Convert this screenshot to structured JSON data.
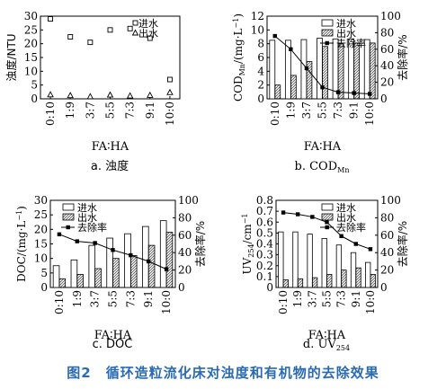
{
  "figure": {
    "caption": "图2　循环造粒流化床对浊度和有机物的去除效果"
  },
  "chart_data": [
    {
      "type": "scatter",
      "caption": "a. 浊度",
      "xlabel": "FA∶HA",
      "ylabel": "浊度/NTU",
      "categories": [
        "0:10",
        "1:9",
        "3:7",
        "5:5",
        "7:3",
        "9:1",
        "10:0"
      ],
      "ylim": [
        0,
        30
      ],
      "yticks": [
        0,
        5,
        10,
        15,
        20,
        25,
        30
      ],
      "legend_position": "top-right",
      "series": [
        {
          "name": "进水",
          "marker": "square",
          "values": [
            29,
            22.5,
            20.5,
            25,
            25.5,
            22,
            7
          ]
        },
        {
          "name": "出水",
          "marker": "triangle",
          "values": [
            1.5,
            1.2,
            0.8,
            1.4,
            1.1,
            1.3,
            2.3
          ]
        }
      ]
    },
    {
      "type": "bar",
      "caption": "b. CODMn",
      "caption_main": "b. COD",
      "caption_sub": "Mn",
      "xlabel": "FA∶HA",
      "ylabel": "COD/(mg·L)",
      "ylabel_main": "COD",
      "ylabel_sub": "Mn",
      "ylabel_unit": "/(mg·L",
      "ylabel_sup": "−1",
      "ylabel_close": ")",
      "y2label": "去除率/%",
      "categories": [
        "0:10",
        "1:9",
        "3:7",
        "5:5",
        "7:3",
        "9:1",
        "10:0"
      ],
      "ylim": [
        0,
        12
      ],
      "yticks": [
        0,
        2,
        4,
        6,
        8,
        10,
        12
      ],
      "y2lim": [
        0,
        100
      ],
      "y2ticks": [
        0,
        20,
        40,
        60,
        80,
        100
      ],
      "legend_position": "top-right",
      "series": [
        {
          "name": "进水",
          "kind": "bar",
          "pattern": "open",
          "values": [
            8.5,
            8.5,
            8.6,
            8.8,
            8.7,
            8.7,
            8.6
          ]
        },
        {
          "name": "出水",
          "kind": "bar",
          "pattern": "hatch",
          "values": [
            2.0,
            3.4,
            5.4,
            7.6,
            8.0,
            8.1,
            8.1
          ]
        },
        {
          "name": "去除率",
          "kind": "line",
          "axis": "right",
          "values": [
            76,
            60,
            37,
            14,
            8,
            7,
            6
          ]
        }
      ]
    },
    {
      "type": "bar",
      "caption": "c. DOC",
      "xlabel": "FA∶HA",
      "ylabel": "DOC/(mg·L)",
      "ylabel_main": "DOC/(mg·L",
      "ylabel_sup": "−1",
      "ylabel_close": ")",
      "y2label": "去除率/%",
      "categories": [
        "0:10",
        "1:9",
        "3:7",
        "5:5",
        "7:3",
        "9:1",
        "10:0"
      ],
      "ylim": [
        0,
        30
      ],
      "yticks": [
        0,
        5,
        10,
        15,
        20,
        25,
        30
      ],
      "y2lim": [
        0,
        100
      ],
      "y2ticks": [
        0,
        20,
        40,
        60,
        80,
        100
      ],
      "legend_position": "top-left",
      "series": [
        {
          "name": "进水",
          "kind": "bar",
          "pattern": "open",
          "values": [
            7.5,
            9.5,
            14.5,
            17.0,
            18.5,
            21.0,
            23.0
          ]
        },
        {
          "name": "出水",
          "kind": "bar",
          "pattern": "hatch",
          "values": [
            3.0,
            4.5,
            6.5,
            10.0,
            11.0,
            14.5,
            19.0
          ]
        },
        {
          "name": "去除率",
          "kind": "line",
          "axis": "right",
          "values": [
            61,
            53,
            51,
            43,
            37,
            30,
            21
          ]
        }
      ]
    },
    {
      "type": "bar",
      "caption": "d. UV254",
      "caption_main": "d. UV",
      "caption_sub": "254",
      "xlabel": "FA∶HA",
      "ylabel": "UV254/cm",
      "ylabel_main": "UV",
      "ylabel_sub": "254",
      "ylabel_unit": "/cm",
      "ylabel_sup": "−1",
      "ylabel_close": "",
      "y2label": "去除率/%",
      "categories": [
        "0:10",
        "1:9",
        "3:7",
        "5:5",
        "7:3",
        "9:1",
        "10:0"
      ],
      "ylim": [
        0,
        0.8
      ],
      "yticks": [
        0,
        0.1,
        0.2,
        0.3,
        0.4,
        0.5,
        0.6,
        0.7,
        0.8
      ],
      "y2lim": [
        0,
        100
      ],
      "y2ticks": [
        0,
        20,
        40,
        60,
        80,
        100
      ],
      "legend_position": "top-right",
      "series": [
        {
          "name": "进水",
          "kind": "bar",
          "pattern": "open",
          "values": [
            0.51,
            0.51,
            0.49,
            0.45,
            0.39,
            0.32,
            0.23
          ]
        },
        {
          "name": "出水",
          "kind": "bar",
          "pattern": "hatch",
          "values": [
            0.07,
            0.08,
            0.09,
            0.12,
            0.16,
            0.18,
            0.12
          ]
        },
        {
          "name": "去除率",
          "kind": "line",
          "axis": "right",
          "values": [
            86,
            84,
            81,
            75,
            59,
            50,
            44
          ]
        }
      ]
    }
  ]
}
